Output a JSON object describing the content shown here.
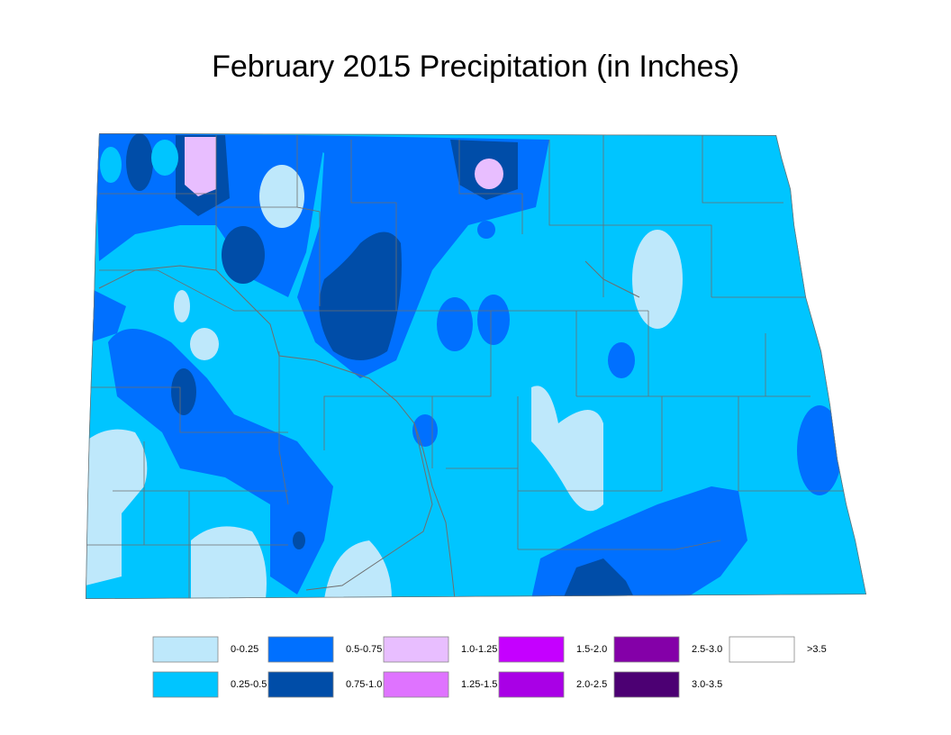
{
  "title": "February 2015 Precipitation (in Inches)",
  "legend": [
    {
      "label": "0-0.25",
      "color": "#bee8fb"
    },
    {
      "label": "0.25-0.5",
      "color": "#00c5ff"
    },
    {
      "label": "0.5-0.75",
      "color": "#0070ff"
    },
    {
      "label": "0.75-1.0",
      "color": "#004da8"
    },
    {
      "label": "1.0-1.25",
      "color": "#e8beff"
    },
    {
      "label": "1.25-1.5",
      "color": "#df73ff"
    },
    {
      "label": "1.5-2.0",
      "color": "#c500ff"
    },
    {
      "label": "2.0-2.5",
      "color": "#a900e6"
    },
    {
      "label": "2.5-3.0",
      "color": "#8400a8"
    },
    {
      "label": "3.0-3.5",
      "color": "#4c0073"
    },
    {
      "label": ">3.5",
      "color": "#ffffff"
    }
  ]
}
